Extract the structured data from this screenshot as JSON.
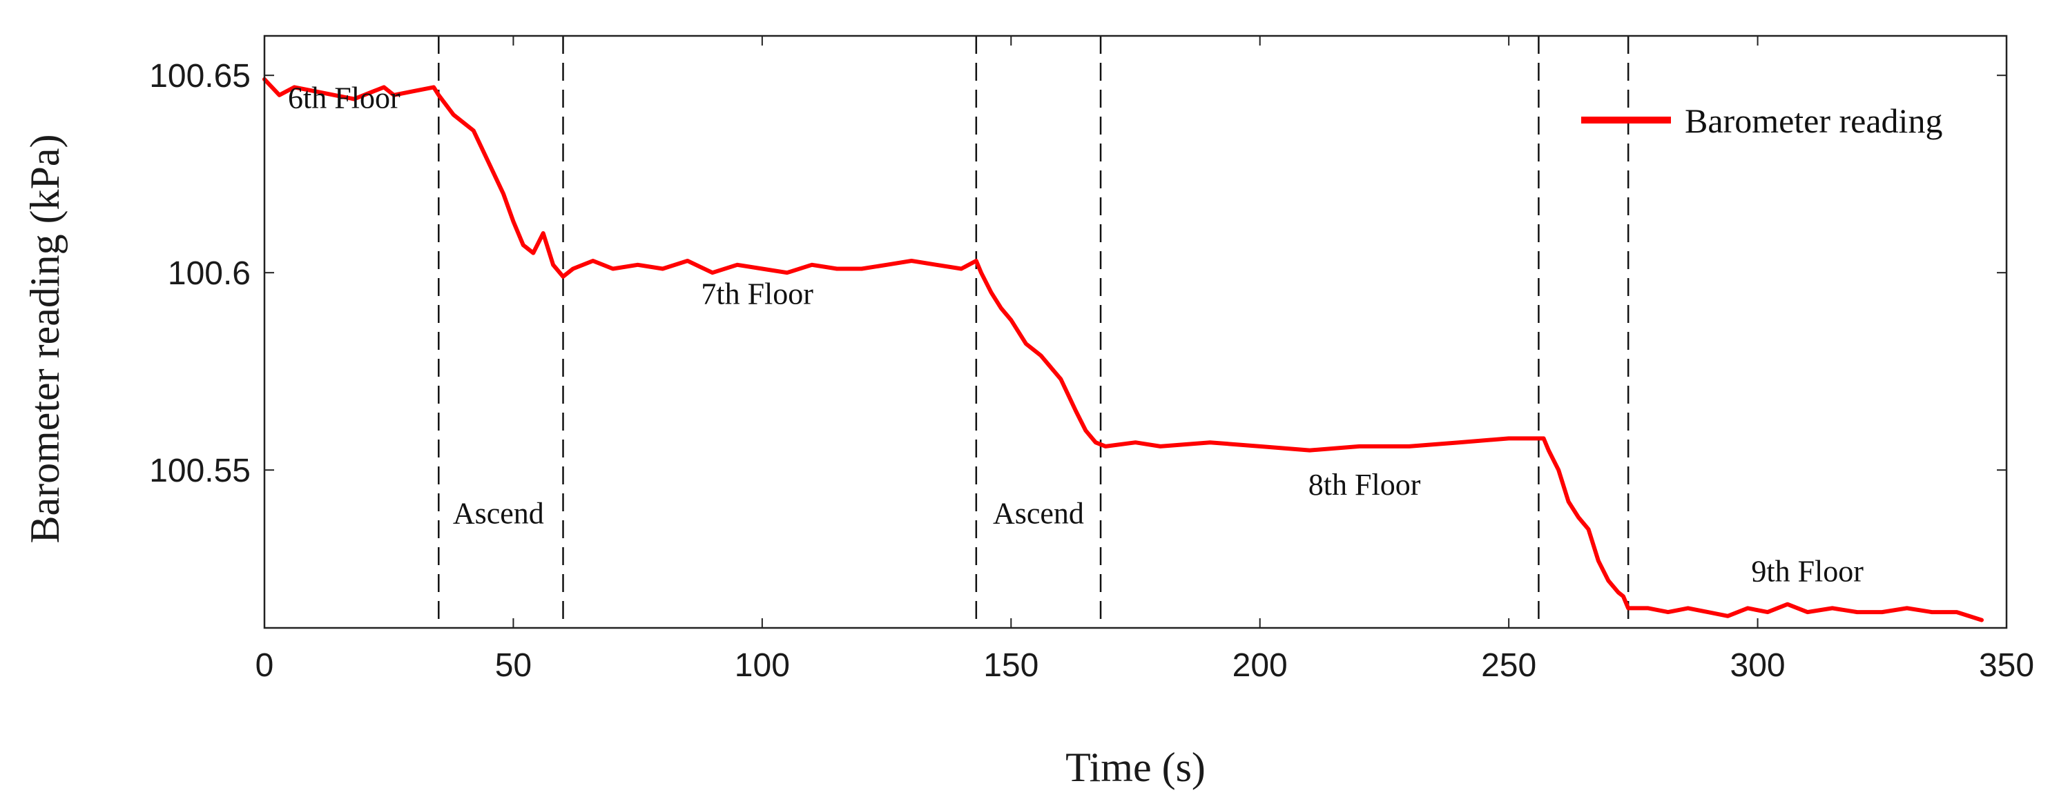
{
  "chart_data": {
    "type": "line",
    "title": "",
    "xlabel": "Time (s)",
    "ylabel": "Barometer reading (kPa)",
    "xlim": [
      0,
      350
    ],
    "ylim": [
      100.51,
      100.66
    ],
    "xticks": [
      0,
      50,
      100,
      150,
      200,
      250,
      300,
      350
    ],
    "xtick_labels": [
      "0",
      "50",
      "100",
      "150",
      "200",
      "250",
      "300",
      "350"
    ],
    "yticks": [
      100.65,
      100.6,
      100.55
    ],
    "ytick_labels": [
      "100.65",
      "100.6",
      "100.55"
    ],
    "grid": false,
    "legend": {
      "position": "top-right",
      "entries": [
        "Barometer reading"
      ]
    },
    "series": [
      {
        "name": "Barometer reading",
        "color": "#ff0000",
        "x": [
          0,
          3,
          6,
          10,
          14,
          18,
          22,
          24,
          26,
          30,
          34,
          35,
          38,
          42,
          45,
          48,
          50,
          52,
          54,
          56,
          58,
          60,
          62,
          66,
          70,
          75,
          80,
          85,
          90,
          95,
          100,
          105,
          110,
          115,
          120,
          125,
          130,
          135,
          140,
          143,
          144,
          146,
          148,
          150,
          153,
          156,
          160,
          163,
          165,
          167,
          169,
          175,
          180,
          190,
          200,
          210,
          220,
          230,
          240,
          250,
          255,
          257,
          258,
          260,
          262,
          264,
          266,
          268,
          270,
          272,
          273,
          274,
          278,
          282,
          286,
          290,
          294,
          298,
          302,
          306,
          310,
          315,
          320,
          325,
          330,
          335,
          340,
          345
        ],
        "y": [
          100.649,
          100.645,
          100.647,
          100.646,
          100.645,
          100.644,
          100.646,
          100.647,
          100.645,
          100.646,
          100.647,
          100.645,
          100.64,
          100.636,
          100.628,
          100.62,
          100.613,
          100.607,
          100.605,
          100.61,
          100.602,
          100.599,
          100.601,
          100.603,
          100.601,
          100.602,
          100.601,
          100.603,
          100.6,
          100.602,
          100.601,
          100.6,
          100.602,
          100.601,
          100.601,
          100.602,
          100.603,
          100.602,
          100.601,
          100.603,
          100.6,
          100.595,
          100.591,
          100.588,
          100.582,
          100.579,
          100.573,
          100.565,
          100.56,
          100.557,
          100.556,
          100.557,
          100.556,
          100.557,
          100.556,
          100.555,
          100.556,
          100.556,
          100.557,
          100.558,
          100.558,
          100.558,
          100.555,
          100.55,
          100.542,
          100.538,
          100.535,
          100.527,
          100.522,
          100.519,
          100.518,
          100.515,
          100.515,
          100.514,
          100.515,
          100.514,
          100.513,
          100.515,
          100.514,
          100.516,
          100.514,
          100.515,
          100.514,
          100.514,
          100.515,
          100.514,
          100.514,
          100.512
        ]
      }
    ],
    "vlines": [
      35,
      60,
      143,
      168,
      256,
      274
    ],
    "annotations": [
      {
        "text": "6th Floor",
        "x": 16,
        "y": 100.6417
      },
      {
        "text": "7th Floor",
        "x": 99,
        "y": 100.5921
      },
      {
        "text": "8th Floor",
        "x": 221,
        "y": 100.5437
      },
      {
        "text": "9th Floor",
        "x": 310,
        "y": 100.5218
      },
      {
        "text": "Ascend",
        "x": 47,
        "y": 100.5365
      },
      {
        "text": "Ascend",
        "x": 155.5,
        "y": 100.5365
      }
    ]
  }
}
